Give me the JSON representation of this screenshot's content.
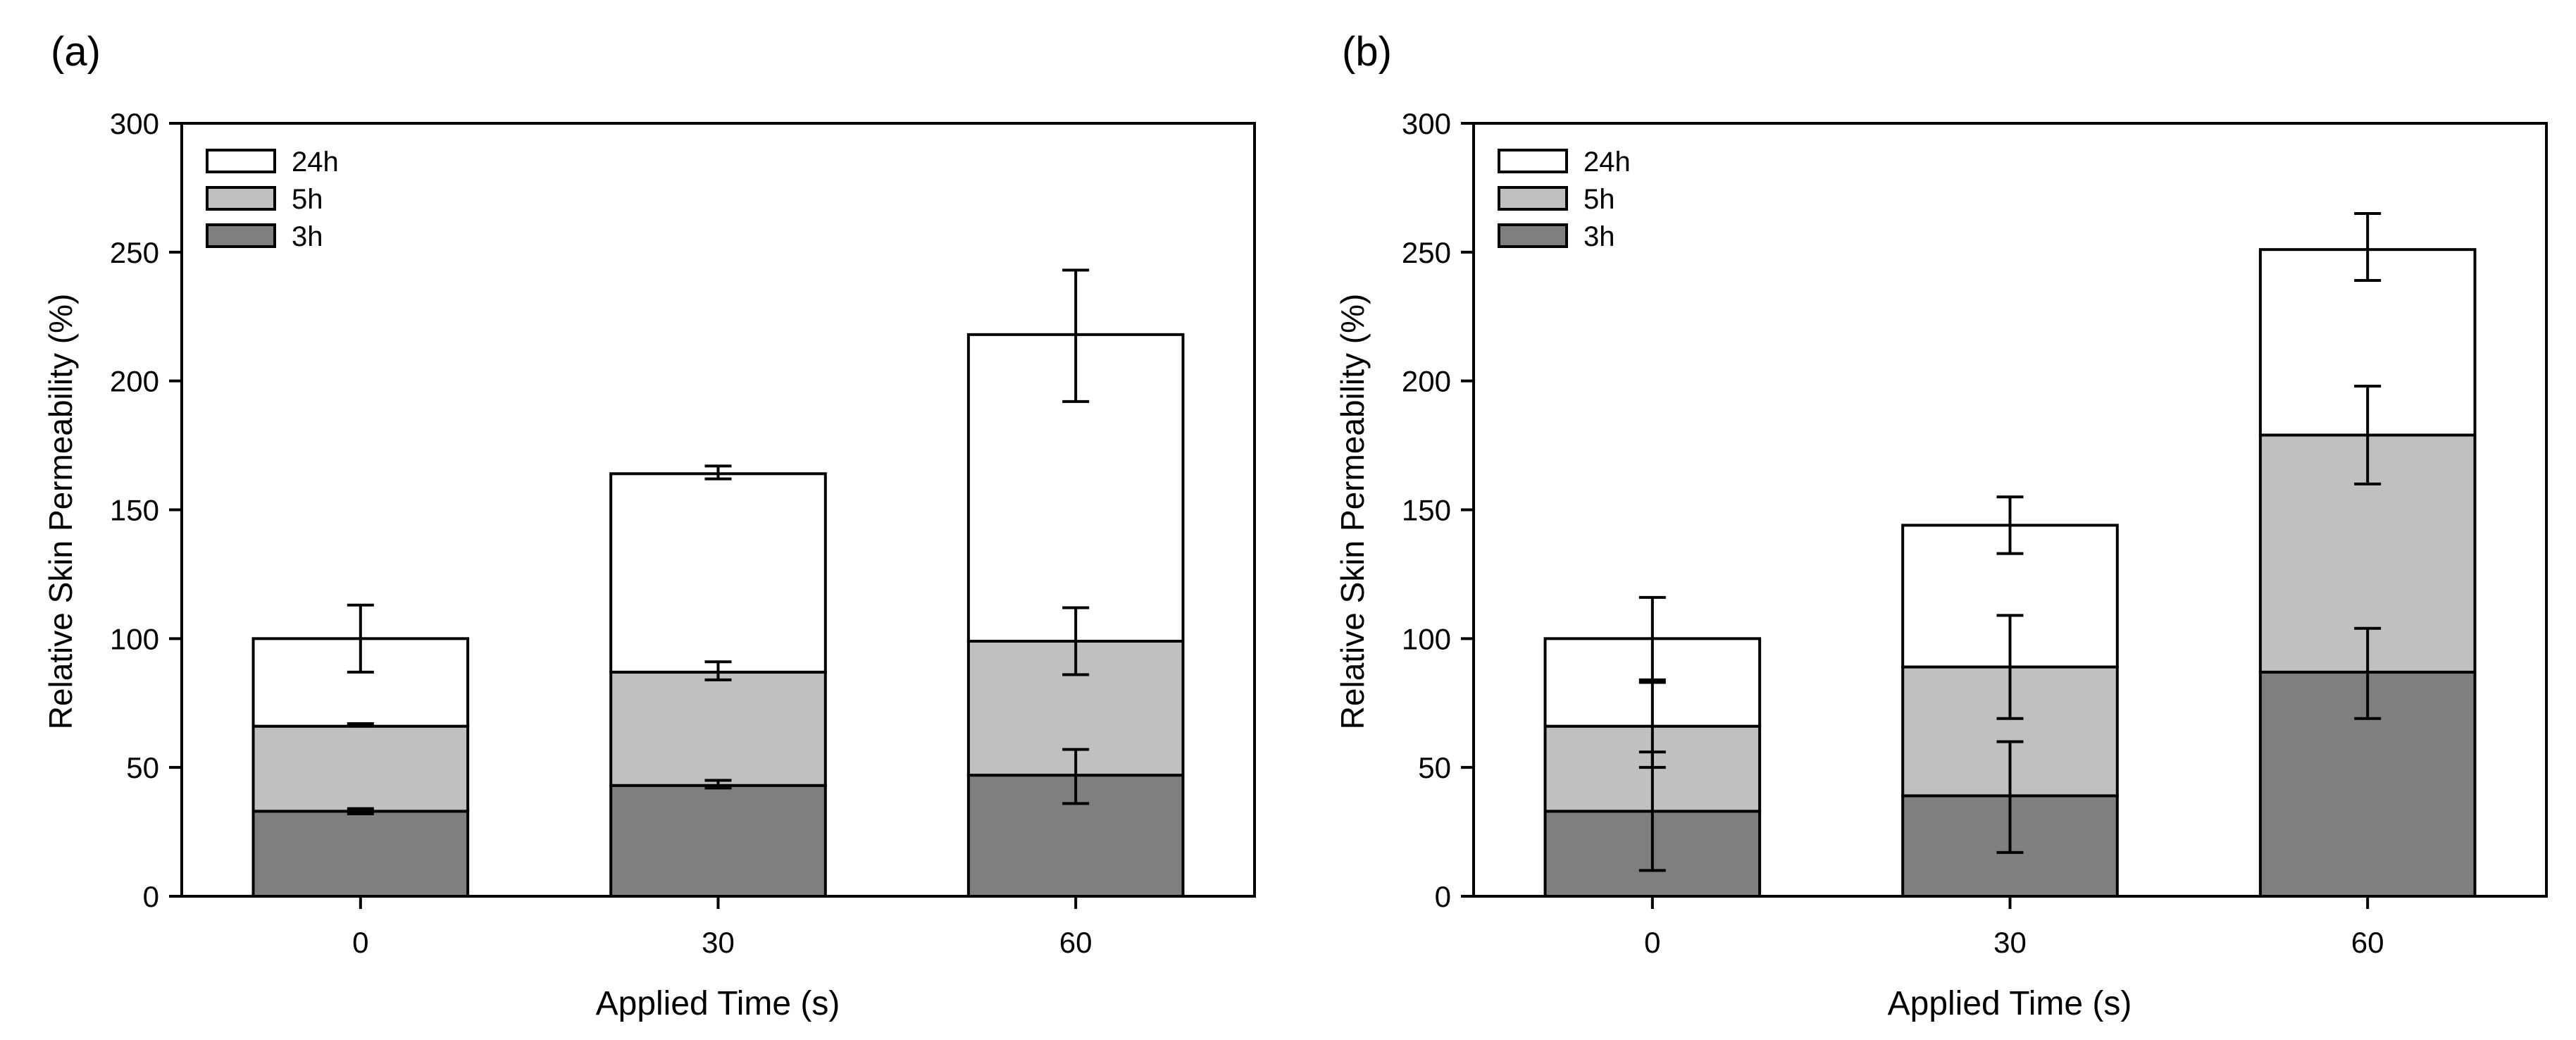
{
  "chart_data": [
    {
      "panel_label": "(a)",
      "type": "bar",
      "stacked": true,
      "xlabel": "Applied Time (s)",
      "ylabel": "Relative Skin Permeability (%)",
      "ylim": [
        0,
        300
      ],
      "yticks": [
        0,
        50,
        100,
        150,
        200,
        250,
        300
      ],
      "categories": [
        "0",
        "30",
        "60"
      ],
      "legend_position": "top-left",
      "series": [
        {
          "name": "3h",
          "color": "#7f7f7f",
          "values": [
            33,
            43,
            47
          ],
          "error_tops": [
            34,
            45,
            57
          ],
          "error_bottoms": [
            32,
            42,
            36
          ]
        },
        {
          "name": "5h",
          "color": "#c0c0c0",
          "values": [
            33,
            44,
            52
          ],
          "error_tops": [
            67,
            91,
            112
          ],
          "error_bottoms": [
            66,
            84,
            86
          ]
        },
        {
          "name": "24h",
          "color": "#ffffff",
          "values": [
            34,
            77,
            119
          ],
          "error_tops": [
            113,
            167,
            243
          ],
          "error_bottoms": [
            87,
            162,
            192
          ]
        }
      ]
    },
    {
      "panel_label": "(b)",
      "type": "bar",
      "stacked": true,
      "xlabel": "Applied Time (s)",
      "ylabel": "Relative Skin Permeability (%)",
      "ylim": [
        0,
        300
      ],
      "yticks": [
        0,
        50,
        100,
        150,
        200,
        250,
        300
      ],
      "categories": [
        "0",
        "30",
        "60"
      ],
      "legend_position": "top-left",
      "series": [
        {
          "name": "3h",
          "color": "#7f7f7f",
          "values": [
            33,
            39,
            87
          ],
          "error_tops": [
            56,
            60,
            104
          ],
          "error_bottoms": [
            10,
            17,
            69
          ]
        },
        {
          "name": "5h",
          "color": "#c0c0c0",
          "values": [
            33,
            50,
            92
          ],
          "error_tops": [
            83,
            109,
            198
          ],
          "error_bottoms": [
            50,
            69,
            160
          ]
        },
        {
          "name": "24h",
          "color": "#ffffff",
          "values": [
            34,
            55,
            72
          ],
          "error_tops": [
            116,
            155,
            265
          ],
          "error_bottoms": [
            84,
            133,
            239
          ]
        }
      ]
    }
  ]
}
